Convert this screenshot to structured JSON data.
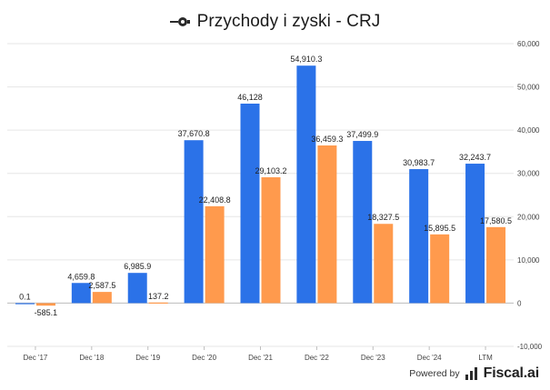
{
  "header": {
    "title": "Przychody i zyski - CRJ",
    "icon": "logo-icon"
  },
  "footer": {
    "powered_by": "Powered by",
    "brand": "Fiscal.ai",
    "icon": "fiscal-ai-logo-icon"
  },
  "colors": {
    "revenue": "#2b72e8",
    "earnings": "#ff9a4d",
    "grid": "#e6e6e6",
    "text": "#222222",
    "axis_text": "#444444"
  },
  "chart_data": {
    "type": "bar",
    "title": "Przychody i zyski - CRJ",
    "xlabel": "",
    "ylabel": "",
    "categories": [
      "Dec '17",
      "Dec '18",
      "Dec '19",
      "Dec '20",
      "Dec '21",
      "Dec '22",
      "Dec '23",
      "Dec '24",
      "LTM"
    ],
    "series": [
      {
        "values": [
          0.1,
          4659.8,
          6985.9,
          37670.8,
          46128,
          54910.3,
          37499.9,
          30983.7,
          32243.7
        ],
        "labels": [
          "0.1",
          "4,659.8",
          "6,985.9",
          "37,670.8",
          "46,128",
          "54,910.3",
          "37,499.9",
          "30,983.7",
          "32,243.7"
        ]
      },
      {
        "values": [
          -585.1,
          2587.5,
          137.2,
          22408.8,
          29103.2,
          36459.3,
          18327.5,
          15895.5,
          17580.5
        ],
        "labels": [
          "-585.1",
          "2,587.5",
          "137.2",
          "22,408.8",
          "29,103.2",
          "36,459.3",
          "18,327.5",
          "15,895.5",
          "17,580.5"
        ]
      }
    ],
    "ylim": [
      -10000,
      60000
    ],
    "yticks": [
      60000,
      50000,
      40000,
      30000,
      20000,
      10000,
      0,
      -10000
    ],
    "ytick_labels": [
      "60,000",
      "50,000",
      "40,000",
      "30,000",
      "20,000",
      "10,000",
      "0",
      "-10,000"
    ],
    "y_axis_side": "right",
    "grid": true,
    "legend": "none"
  }
}
